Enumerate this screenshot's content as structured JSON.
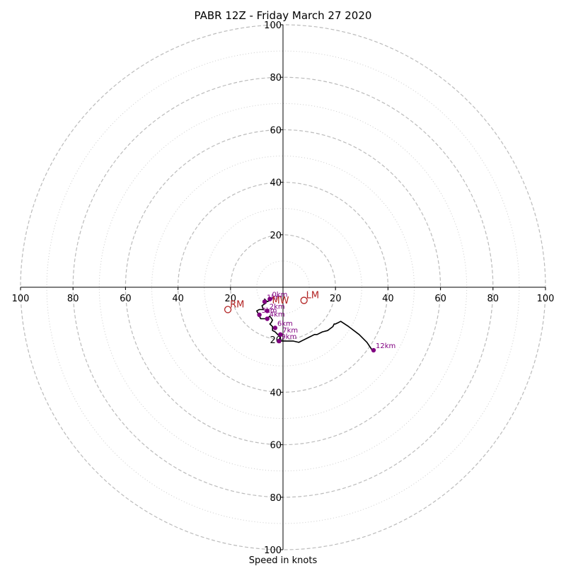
{
  "chart_data": {
    "type": "scatter",
    "subtype": "hodograph",
    "title": "PABR 12Z - Friday March 27 2020",
    "xlabel": "Speed in knots",
    "ylabel": "",
    "xlim": [
      -100,
      100
    ],
    "ylim": [
      -100,
      100
    ],
    "rings_dashed": [
      20,
      40,
      60,
      80,
      100
    ],
    "rings_dotted": [
      10,
      30,
      50,
      70,
      90
    ],
    "x_ticks": [
      {
        "value": -100,
        "label": "100"
      },
      {
        "value": -80,
        "label": "80"
      },
      {
        "value": -60,
        "label": "60"
      },
      {
        "value": -40,
        "label": "40"
      },
      {
        "value": -20,
        "label": "20"
      },
      {
        "value": 20,
        "label": "20"
      },
      {
        "value": 40,
        "label": "40"
      },
      {
        "value": 60,
        "label": "60"
      },
      {
        "value": 80,
        "label": "80"
      },
      {
        "value": 100,
        "label": "100"
      }
    ],
    "y_ticks": [
      {
        "value": 100,
        "label": "100"
      },
      {
        "value": 80,
        "label": "80"
      },
      {
        "value": 60,
        "label": "60"
      },
      {
        "value": 40,
        "label": "40"
      },
      {
        "value": 20,
        "label": "20"
      },
      {
        "value": -20,
        "label": "20"
      },
      {
        "value": -40,
        "label": "40"
      },
      {
        "value": -60,
        "label": "60"
      },
      {
        "value": -80,
        "label": "80"
      },
      {
        "value": -100,
        "label": "100"
      }
    ],
    "hodograph_trace": [
      [
        -4,
        -4
      ],
      [
        -5,
        -5
      ],
      [
        -6,
        -5.5
      ],
      [
        -7,
        -4.5
      ],
      [
        -6.5,
        -6
      ],
      [
        -8,
        -7
      ],
      [
        -7.5,
        -8.5
      ],
      [
        -9,
        -8.5
      ],
      [
        -10,
        -9
      ],
      [
        -9.5,
        -10
      ],
      [
        -9,
        -11
      ],
      [
        -8.5,
        -12
      ],
      [
        -6,
        -12
      ],
      [
        -5,
        -11
      ],
      [
        -4,
        -12.5
      ],
      [
        -4.5,
        -13.5
      ],
      [
        -5,
        -14
      ],
      [
        -4,
        -15
      ],
      [
        -4,
        -16.5
      ],
      [
        -3,
        -17
      ],
      [
        -2,
        -18
      ],
      [
        -1,
        -19
      ],
      [
        -1.5,
        -20
      ],
      [
        -1,
        -21
      ],
      [
        -1,
        -20.5
      ],
      [
        1,
        -20.5
      ],
      [
        4,
        -20.5
      ],
      [
        6,
        -21
      ],
      [
        8,
        -20
      ],
      [
        10,
        -19
      ],
      [
        12,
        -18
      ],
      [
        13,
        -18
      ],
      [
        15,
        -17
      ],
      [
        17,
        -16.5
      ],
      [
        19,
        -15
      ],
      [
        19.5,
        -14
      ],
      [
        20,
        -14
      ],
      [
        21,
        -13.5
      ],
      [
        22,
        -13
      ],
      [
        25,
        -15
      ],
      [
        29,
        -18
      ],
      [
        32,
        -21
      ],
      [
        34,
        -24
      ],
      [
        34.5,
        -24
      ]
    ],
    "height_markers": [
      {
        "label": "12km",
        "u": 34.5,
        "v": -24
      },
      {
        "label": "9km",
        "u": -1.5,
        "v": -20.5
      },
      {
        "label": "7km",
        "u": -1,
        "v": -18
      },
      {
        "label": "6km",
        "u": -3,
        "v": -15.5
      },
      {
        "label": "4km",
        "u": -6,
        "v": -12
      },
      {
        "label": "3km",
        "u": -9,
        "v": -10.5
      },
      {
        "label": "2km",
        "u": -6,
        "v": -9
      },
      {
        "label": "1km",
        "u": -7,
        "v": -5.5
      },
      {
        "label": "0km",
        "u": -5,
        "v": -4.5
      }
    ],
    "storm_motion": [
      {
        "label": "RM",
        "u": -21,
        "v": -8.5
      },
      {
        "label": "LM",
        "u": 8,
        "v": -5
      },
      {
        "label": "MW",
        "u": -5,
        "v": -7
      }
    ],
    "colors": {
      "trace": "#000000",
      "markers": "#800080",
      "storm_motion": "#b22222",
      "grid": "#bbbbbb",
      "axes": "#000000"
    }
  }
}
